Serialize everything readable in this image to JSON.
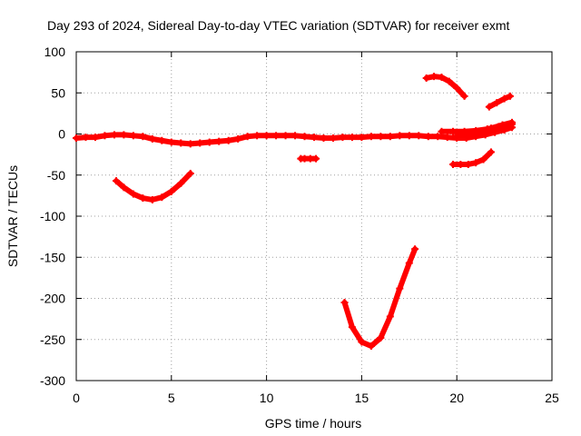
{
  "chart_data": {
    "type": "scatter",
    "title": "Day 293 of 2024, Sidereal Day-to-day VTEC variation (SDTVAR) for receiver exmt",
    "xlabel": "GPS time / hours",
    "ylabel": "SDTVAR / TECUs",
    "xlim": [
      0,
      25
    ],
    "ylim": [
      -300,
      100
    ],
    "xticks": [
      0,
      5,
      10,
      15,
      20,
      25
    ],
    "xtick_labels": [
      "0",
      "5",
      "10",
      "15",
      "20",
      "25"
    ],
    "yticks": [
      -300,
      -250,
      -200,
      -150,
      -100,
      -50,
      0,
      50,
      100
    ],
    "ytick_labels": [
      "-300",
      "-250",
      "-200",
      "-150",
      "-100",
      "-50",
      "0",
      "50",
      "100"
    ],
    "grid": true,
    "series": [
      {
        "color": "#ff0000",
        "x": [
          0,
          0.5,
          1,
          1.5,
          2,
          2.5,
          3,
          3.5,
          4,
          4.5,
          5,
          5.5,
          6,
          6.5,
          7,
          7.5,
          8,
          8.5,
          9,
          9.5,
          10,
          10.5,
          11,
          11.5,
          12,
          12.5,
          13,
          13.5,
          14,
          14.5,
          15,
          15.5,
          16,
          16.5,
          17,
          17.5,
          18,
          18.5,
          19,
          19.5,
          20,
          20.5,
          21,
          21.5,
          22,
          22.5,
          22.9
        ],
        "y": [
          -5,
          -4,
          -4,
          -2,
          -1,
          -1,
          -2,
          -3,
          -6,
          -8,
          -10,
          -11,
          -12,
          -11,
          -10,
          -9,
          -8,
          -6,
          -3,
          -2,
          -2,
          -2,
          -2,
          -2,
          -3,
          -4,
          -5,
          -5,
          -4,
          -4,
          -4,
          -3,
          -3,
          -3,
          -2,
          -2,
          -2,
          -3,
          -3,
          -4,
          -5,
          -5,
          -3,
          -1,
          2,
          5,
          8
        ]
      },
      {
        "color": "#ff0000",
        "x": [
          2.1,
          2.5,
          3,
          3.5,
          4,
          4.5,
          5,
          5.5,
          6
        ],
        "y": [
          -57,
          -65,
          -73,
          -78,
          -80,
          -77,
          -70,
          -60,
          -48
        ]
      },
      {
        "color": "#ff0000",
        "x": [
          11.8,
          12,
          12.3,
          12.6
        ],
        "y": [
          -30,
          -30,
          -30,
          -30
        ]
      },
      {
        "color": "#ff0000",
        "x": [
          14.1,
          14.5,
          15,
          15.5,
          16,
          16.5,
          17,
          17.5,
          17.8
        ],
        "y": [
          -205,
          -235,
          -253,
          -258,
          -248,
          -222,
          -188,
          -157,
          -140
        ]
      },
      {
        "color": "#ff0000",
        "x": [
          18.4,
          18.8,
          19.2,
          19.6,
          20,
          20.4
        ],
        "y": [
          68,
          70,
          69,
          64,
          56,
          46
        ]
      },
      {
        "color": "#ff0000",
        "x": [
          19.2,
          19.8,
          20.4,
          21,
          21.6,
          22.2,
          22.9
        ],
        "y": [
          3,
          3,
          3,
          4,
          6,
          9,
          12
        ]
      },
      {
        "color": "#ff0000",
        "x": [
          19.8,
          20.2,
          20.6,
          21,
          21.4,
          21.8
        ],
        "y": [
          -37,
          -37,
          -37,
          -35,
          -31,
          -22
        ]
      },
      {
        "color": "#ff0000",
        "x": [
          21.7,
          22.1,
          22.5,
          22.8
        ],
        "y": [
          33,
          38,
          43,
          46
        ]
      },
      {
        "color": "#ff0000",
        "x": [
          20,
          20.6,
          21.2,
          21.8,
          22.4,
          22.9
        ],
        "y": [
          -2,
          0,
          3,
          7,
          11,
          14
        ]
      }
    ]
  }
}
